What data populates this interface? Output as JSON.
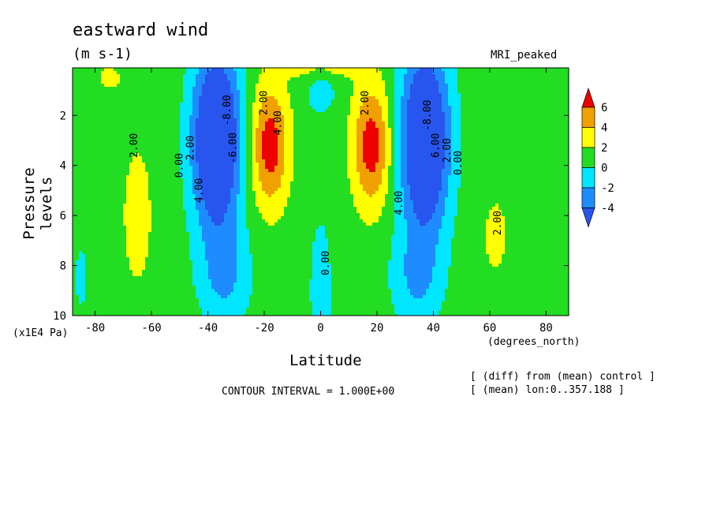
{
  "header": {
    "title": "eastward wind",
    "units": "(m s-1)",
    "run_name": "MRI_peaked"
  },
  "footer": {
    "contour_interval": "CONTOUR INTERVAL = 1.000E+00",
    "note_diff": "[ (diff) from (mean) control ]",
    "note_mean": "[ (mean) lon:0..357.188 ]"
  },
  "colors": {
    "red": "#ee0000",
    "orange": "#f0a000",
    "yellow": "#ffff00",
    "green": "#22dd22",
    "cyan": "#00e6ff",
    "blue": "#1e8cff",
    "darkblue": "#2855ee"
  },
  "chart_data": {
    "type": "heatmap",
    "plot_style": "filled contour",
    "xlabel": "Latitude",
    "ylabel": "Pressure levels",
    "xunit": "(degrees_north)",
    "yunit": "(x1E4 Pa)",
    "xlim": [
      -88,
      88
    ],
    "ylim": [
      10,
      0.1
    ],
    "y_inverted": true,
    "xticks": [
      "-80",
      "-60",
      "-40",
      "-20",
      "0",
      "20",
      "40",
      "60",
      "80"
    ],
    "yticks": [
      "2",
      "4",
      "6",
      "8",
      "10"
    ],
    "colorbar": {
      "levels": [
        "6",
        "4",
        "2",
        "0",
        "-2",
        "-4"
      ],
      "bands": [
        {
          "range": "> 6",
          "color": "#ee0000"
        },
        {
          "range": "4 to 6",
          "color": "#f0a000"
        },
        {
          "range": "2 to 4",
          "color": "#ffff00"
        },
        {
          "range": "0 to 2",
          "color": "#22dd22"
        },
        {
          "range": "-2 to 0",
          "color": "#00e6ff"
        },
        {
          "range": "-4 to -2",
          "color": "#1e8cff"
        },
        {
          "range": "< -4",
          "color": "#2855ee"
        }
      ]
    },
    "contour_interval": 1.0,
    "features": [
      {
        "kind": "max",
        "lat": -18,
        "p": 3.2,
        "value": 6.8
      },
      {
        "kind": "max",
        "lat": 18,
        "p": 3.2,
        "value": 6.8
      },
      {
        "kind": "min",
        "lat": -37,
        "p": 3.0,
        "value": -9
      },
      {
        "kind": "min",
        "lat": 37,
        "p": 3.0,
        "value": -9
      },
      {
        "kind": "max",
        "lat": -65,
        "p": 6.0,
        "value": 2.7
      },
      {
        "kind": "max",
        "lat": 62,
        "p": 6.8,
        "value": 2.5
      },
      {
        "kind": "min",
        "lat": 0,
        "p": 1.0,
        "value": -1.5
      }
    ],
    "contour_labels": [
      {
        "text": "2.00",
        "lat": -65,
        "p": 3.2
      },
      {
        "text": "0.00",
        "lat": -49,
        "p": 4.0
      },
      {
        "text": "2.00",
        "lat": -45,
        "p": 3.3
      },
      {
        "text": "4.00",
        "lat": -42,
        "p": 5.0
      },
      {
        "text": "-6.00",
        "lat": -30,
        "p": 3.3
      },
      {
        "text": "-8.00",
        "lat": -32,
        "p": 1.8
      },
      {
        "text": "2.00",
        "lat": -19,
        "p": 1.5
      },
      {
        "text": "4.00",
        "lat": -14,
        "p": 2.3
      },
      {
        "text": "0.00",
        "lat": 3,
        "p": 7.9
      },
      {
        "text": "2.00",
        "lat": 17,
        "p": 1.5
      },
      {
        "text": "4.00",
        "lat": 29,
        "p": 5.5
      },
      {
        "text": "-8.00",
        "lat": 39,
        "p": 2.0
      },
      {
        "text": "6.00",
        "lat": 42,
        "p": 3.2
      },
      {
        "text": "2.00",
        "lat": 46,
        "p": 3.4
      },
      {
        "text": "0.00",
        "lat": 50,
        "p": 3.9
      },
      {
        "text": "2.00",
        "lat": 64,
        "p": 6.3
      }
    ]
  }
}
